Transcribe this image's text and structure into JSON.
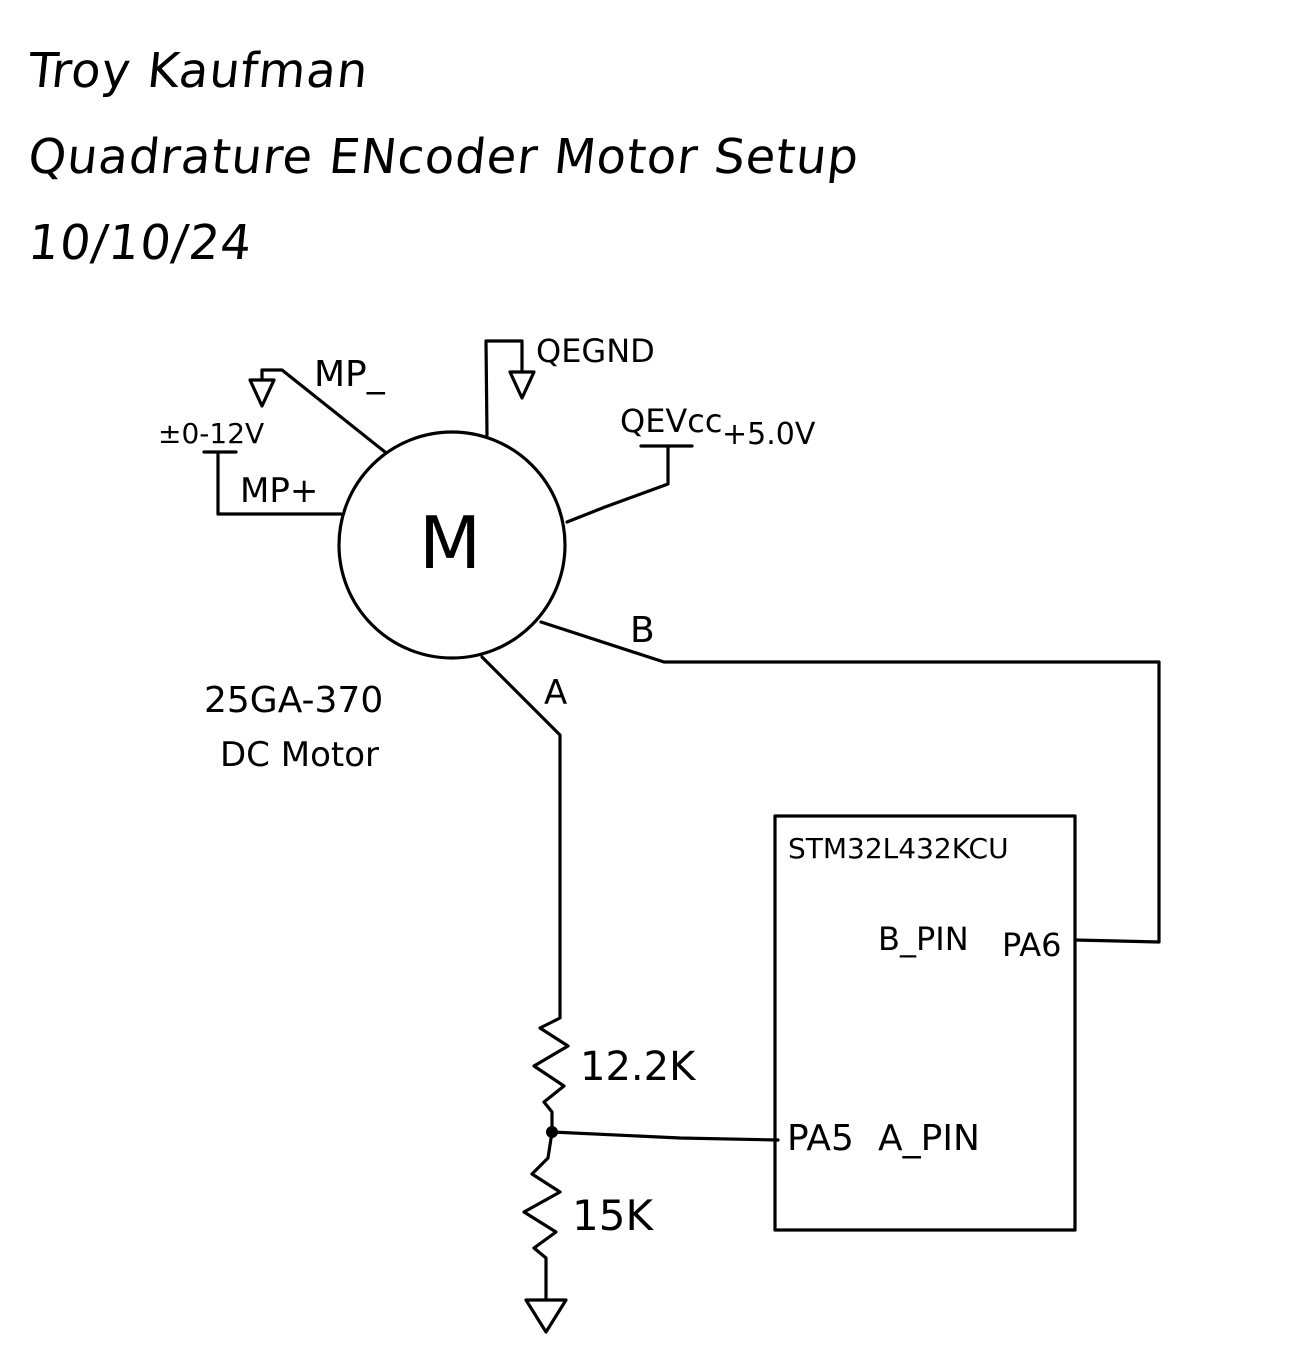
{
  "header": {
    "author": "Troy Kaufman",
    "title": "Quadrature ENcoder Motor Setup",
    "date": "10/10/24"
  },
  "motor": {
    "symbol": "M",
    "model": "25GA-370",
    "type": "DC Motor",
    "terminals": {
      "mp_minus": "MP_",
      "mp_plus": "MP+",
      "supply": "±0-12V",
      "qe_gnd": "QEGND",
      "qe_vcc": "QEVcc",
      "qe_vcc_value": "+5.0V",
      "channel_a": "A",
      "channel_b": "B"
    }
  },
  "divider": {
    "r_top": "12.2K",
    "r_bottom": "15K"
  },
  "mcu": {
    "name": "STM32L432KCU",
    "b_pin_label": "B_PIN",
    "b_pin": "PA6",
    "a_pin": "PA5",
    "a_pin_label": "A_PIN"
  },
  "icons": [
    "ground-icon",
    "vcc-rail-icon",
    "resistor-icon",
    "motor-icon"
  ]
}
